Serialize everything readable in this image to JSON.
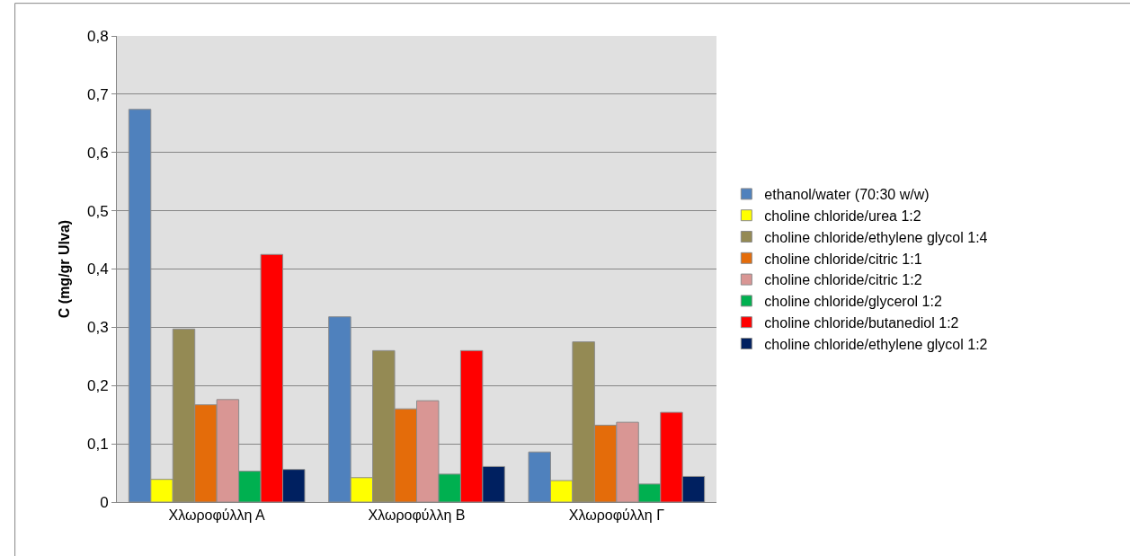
{
  "chart_data": {
    "type": "bar",
    "ylabel": "C (mg/gr Ulva)",
    "categories": [
      "Χλωροφύλλη Α",
      "Χλωροφύλλη Β",
      "Χλωροφύλλη Γ"
    ],
    "series": [
      {
        "name": "ethanol/water (70:30 w/w)",
        "color": "#4f81bd",
        "values": [
          0.674,
          0.318,
          0.086
        ]
      },
      {
        "name": "choline chloride/urea 1:2",
        "color": "#ffff00",
        "values": [
          0.039,
          0.042,
          0.037
        ]
      },
      {
        "name": "choline chloride/ethylene glycol 1:4",
        "color": "#948a54",
        "values": [
          0.297,
          0.26,
          0.275
        ]
      },
      {
        "name": "choline chloride/citric 1:1",
        "color": "#e46c0a",
        "values": [
          0.167,
          0.16,
          0.132
        ]
      },
      {
        "name": "choline chloride/citric 1:2",
        "color": "#d99694",
        "values": [
          0.176,
          0.174,
          0.137
        ]
      },
      {
        "name": "choline chloride/glycerol 1:2",
        "color": "#00b050",
        "values": [
          0.053,
          0.048,
          0.031
        ]
      },
      {
        "name": "choline chloride/butanediol 1:2",
        "color": "#ff0000",
        "values": [
          0.425,
          0.26,
          0.154
        ]
      },
      {
        "name": "choline chloride/ethylene glycol 1:2",
        "color": "#002060",
        "values": [
          0.056,
          0.061,
          0.044
        ]
      }
    ],
    "ylim": [
      0,
      0.8
    ],
    "yticks": [
      {
        "value": 0,
        "label": "0"
      },
      {
        "value": 0.1,
        "label": "0,1"
      },
      {
        "value": 0.2,
        "label": "0,2"
      },
      {
        "value": 0.3,
        "label": "0,3"
      },
      {
        "value": 0.4,
        "label": "0,4"
      },
      {
        "value": 0.5,
        "label": "0,5"
      },
      {
        "value": 0.6,
        "label": "0,6"
      },
      {
        "value": 0.7,
        "label": "0,7"
      },
      {
        "value": 0.8,
        "label": "0,8"
      }
    ],
    "grid": "y",
    "legend": "right"
  }
}
